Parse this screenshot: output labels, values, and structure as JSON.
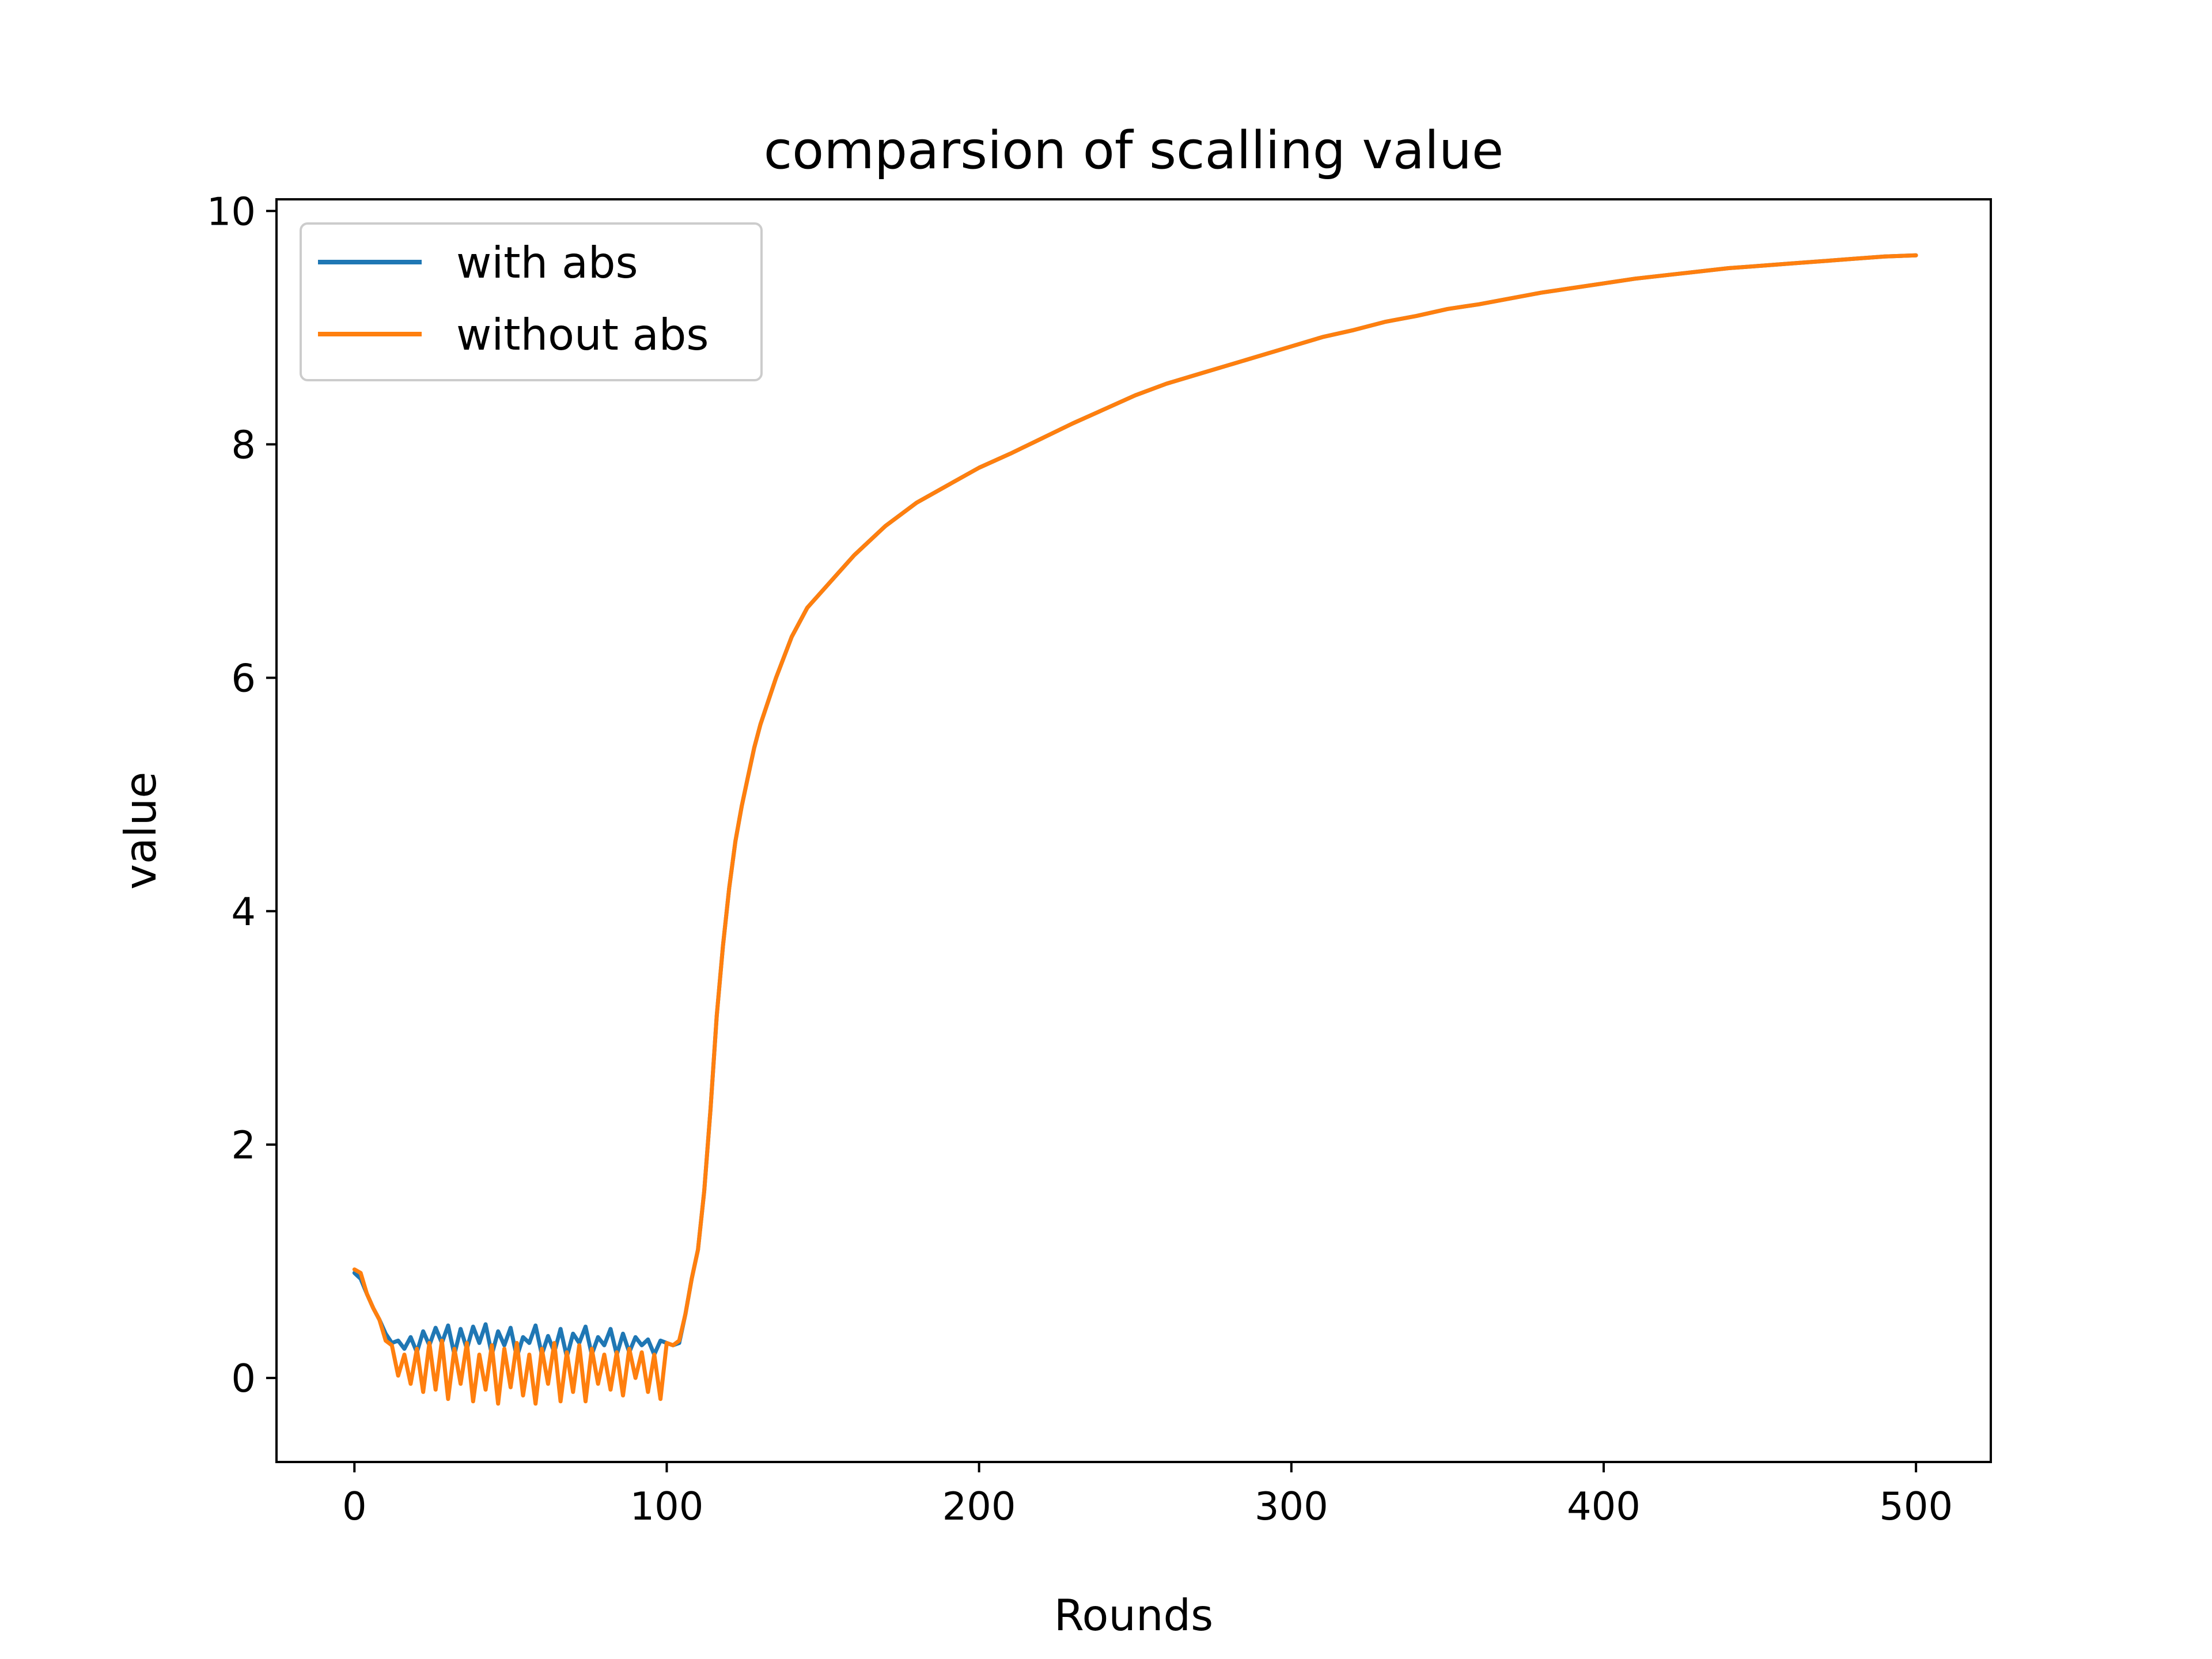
{
  "chart_data": {
    "type": "line",
    "title": "comparsion of scalling value",
    "xlabel": "Rounds",
    "ylabel": "value",
    "xlim": [
      -24.95,
      523.95
    ],
    "ylim": [
      -0.72,
      10.1
    ],
    "xticks": [
      0,
      100,
      200,
      300,
      400,
      500
    ],
    "xtick_labels": [
      "0",
      "100",
      "200",
      "300",
      "400",
      "500"
    ],
    "yticks": [
      0,
      2,
      4,
      6,
      8,
      10
    ],
    "ytick_labels": [
      "0",
      "2",
      "4",
      "6",
      "8",
      "10"
    ],
    "grid": false,
    "legend_position": "upper-left",
    "series": [
      {
        "name": "with abs",
        "color": "#1f77b4",
        "x": [
          0,
          2,
          4,
          6,
          8,
          10,
          12,
          14,
          16,
          18,
          20,
          22,
          24,
          26,
          28,
          30,
          32,
          34,
          36,
          38,
          40,
          42,
          44,
          46,
          48,
          50,
          52,
          54,
          56,
          58,
          60,
          62,
          64,
          66,
          68,
          70,
          72,
          74,
          76,
          78,
          80,
          82,
          84,
          86,
          88,
          90,
          92,
          94,
          96,
          98,
          100,
          102,
          104,
          106,
          108,
          110,
          112,
          114,
          116,
          118,
          120,
          122,
          124,
          126,
          128,
          130,
          135,
          140,
          145,
          150,
          155,
          160,
          170,
          180,
          190,
          200,
          210,
          220,
          230,
          240,
          250,
          260,
          270,
          280,
          290,
          300,
          310,
          320,
          330,
          340,
          350,
          360,
          370,
          380,
          390,
          400,
          410,
          420,
          430,
          440,
          450,
          460,
          470,
          480,
          490,
          500
        ],
        "y": [
          0.9,
          0.85,
          0.72,
          0.6,
          0.5,
          0.38,
          0.3,
          0.32,
          0.25,
          0.35,
          0.22,
          0.4,
          0.28,
          0.43,
          0.3,
          0.45,
          0.2,
          0.42,
          0.25,
          0.44,
          0.3,
          0.46,
          0.2,
          0.4,
          0.28,
          0.43,
          0.18,
          0.35,
          0.3,
          0.45,
          0.2,
          0.36,
          0.22,
          0.42,
          0.18,
          0.38,
          0.3,
          0.44,
          0.2,
          0.35,
          0.28,
          0.42,
          0.2,
          0.38,
          0.22,
          0.35,
          0.28,
          0.33,
          0.2,
          0.32,
          0.3,
          0.28,
          0.3,
          0.55,
          0.85,
          1.1,
          1.6,
          2.3,
          3.1,
          3.7,
          4.2,
          4.6,
          4.9,
          5.15,
          5.4,
          5.6,
          6.0,
          6.35,
          6.6,
          6.75,
          6.9,
          7.05,
          7.3,
          7.5,
          7.65,
          7.8,
          7.92,
          8.05,
          8.18,
          8.3,
          8.42,
          8.52,
          8.6,
          8.68,
          8.76,
          8.84,
          8.92,
          8.98,
          9.05,
          9.1,
          9.16,
          9.2,
          9.25,
          9.3,
          9.34,
          9.38,
          9.42,
          9.45,
          9.48,
          9.51,
          9.53,
          9.55,
          9.57,
          9.59,
          9.61,
          9.62
        ]
      },
      {
        "name": "without abs",
        "color": "#ff7f0e",
        "x": [
          0,
          2,
          4,
          6,
          8,
          10,
          12,
          14,
          16,
          18,
          20,
          22,
          24,
          26,
          28,
          30,
          32,
          34,
          36,
          38,
          40,
          42,
          44,
          46,
          48,
          50,
          52,
          54,
          56,
          58,
          60,
          62,
          64,
          66,
          68,
          70,
          72,
          74,
          76,
          78,
          80,
          82,
          84,
          86,
          88,
          90,
          92,
          94,
          96,
          98,
          100,
          102,
          104,
          106,
          108,
          110,
          112,
          114,
          116,
          118,
          120,
          122,
          124,
          126,
          128,
          130,
          135,
          140,
          145,
          150,
          155,
          160,
          170,
          180,
          190,
          200,
          210,
          220,
          230,
          240,
          250,
          260,
          270,
          280,
          290,
          300,
          310,
          320,
          330,
          340,
          350,
          360,
          370,
          380,
          390,
          400,
          410,
          420,
          430,
          440,
          450,
          460,
          470,
          480,
          490,
          500
        ],
        "y": [
          0.93,
          0.9,
          0.72,
          0.6,
          0.5,
          0.32,
          0.28,
          0.02,
          0.2,
          -0.05,
          0.25,
          -0.12,
          0.3,
          -0.1,
          0.32,
          -0.18,
          0.25,
          -0.05,
          0.3,
          -0.2,
          0.2,
          -0.1,
          0.28,
          -0.22,
          0.25,
          -0.08,
          0.3,
          -0.15,
          0.2,
          -0.22,
          0.25,
          -0.05,
          0.3,
          -0.2,
          0.22,
          -0.12,
          0.28,
          -0.2,
          0.25,
          -0.05,
          0.2,
          -0.1,
          0.22,
          -0.15,
          0.25,
          0.0,
          0.22,
          -0.12,
          0.2,
          -0.18,
          0.3,
          0.28,
          0.32,
          0.55,
          0.85,
          1.1,
          1.6,
          2.3,
          3.1,
          3.7,
          4.2,
          4.6,
          4.9,
          5.15,
          5.4,
          5.6,
          6.0,
          6.35,
          6.6,
          6.75,
          6.9,
          7.05,
          7.3,
          7.5,
          7.65,
          7.8,
          7.92,
          8.05,
          8.18,
          8.3,
          8.42,
          8.52,
          8.6,
          8.68,
          8.76,
          8.84,
          8.92,
          8.98,
          9.05,
          9.1,
          9.16,
          9.2,
          9.25,
          9.3,
          9.34,
          9.38,
          9.42,
          9.45,
          9.48,
          9.51,
          9.53,
          9.55,
          9.57,
          9.59,
          9.61,
          9.62
        ]
      }
    ]
  }
}
